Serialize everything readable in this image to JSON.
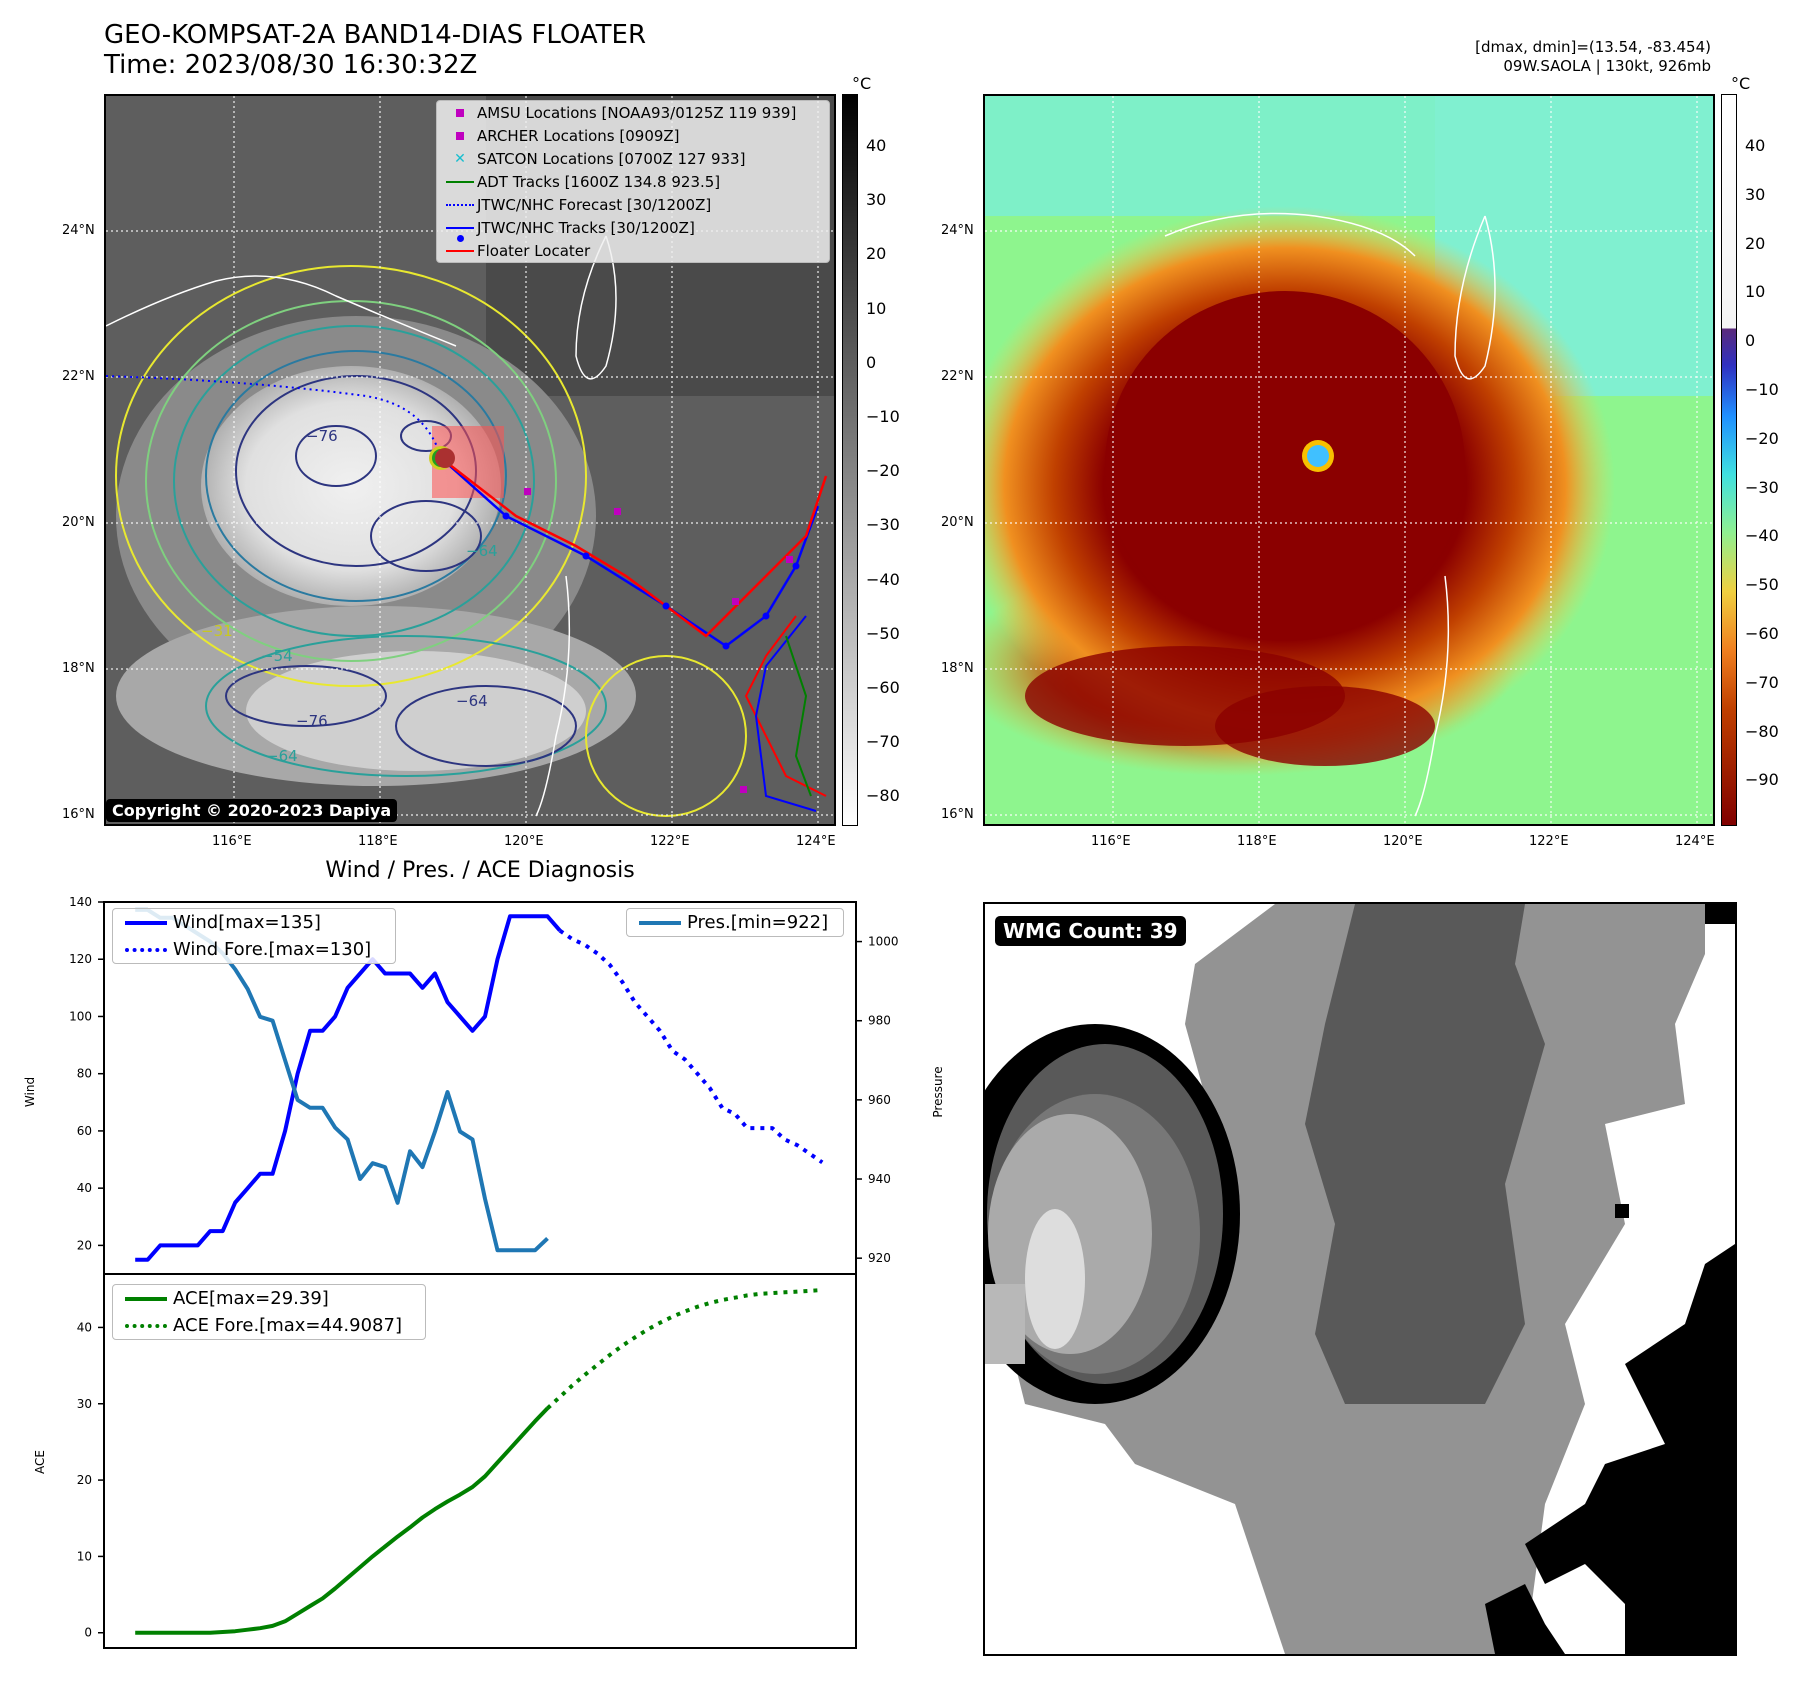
{
  "header": {
    "title_line1": "GEO-KOMPSAT-2A BAND14-DIAS FLOATER",
    "title_line2": "Time: 2023/08/30 16:30:32Z",
    "right_line1": "[dmax, dmin]=(13.54, -83.454)",
    "right_line2": "09W.SAOLA | 130kt, 926mb"
  },
  "map_axes": {
    "lat_ticks": [
      "24°N",
      "22°N",
      "20°N",
      "18°N",
      "16°N"
    ],
    "lon_ticks": [
      "116°E",
      "118°E",
      "120°E",
      "122°E",
      "124°E"
    ]
  },
  "left_map": {
    "colorbar_unit": "°C",
    "colorbar_ticks": [
      "40",
      "30",
      "20",
      "10",
      "0",
      "−10",
      "−20",
      "−30",
      "−40",
      "−50",
      "−60",
      "−70",
      "−80"
    ],
    "copyright": "Copyright © 2020-2023 Dapiya",
    "contour_labels": [
      "−76",
      "−64",
      "−54",
      "−31",
      "−76",
      "−64",
      "−64"
    ],
    "legend": [
      {
        "label": "AMSU Locations [NOAA93/0125Z 119 939]",
        "symbol": "square",
        "color": "#bf00bf"
      },
      {
        "label": "ARCHER Locations [0909Z]",
        "symbol": "square",
        "color": "#bf00bf"
      },
      {
        "label": "SATCON Locations [0700Z 127 933]",
        "symbol": "x",
        "color": "#17becf"
      },
      {
        "label": "ADT Tracks [1600Z 134.8 923.5]",
        "symbol": "line",
        "color": "#008000"
      },
      {
        "label": "JTWC/NHC Forecast [30/1200Z]",
        "symbol": "dotted",
        "color": "#0000ff"
      },
      {
        "label": "JTWC/NHC Tracks [30/1200Z]",
        "symbol": "line-dot",
        "color": "#0000ff"
      },
      {
        "label": "Floater Locater",
        "symbol": "line",
        "color": "#ff0000"
      }
    ]
  },
  "right_map": {
    "colorbar_unit": "°C",
    "colorbar_ticks": [
      "40",
      "30",
      "20",
      "10",
      "0",
      "−10",
      "−20",
      "−30",
      "−40",
      "−50",
      "−60",
      "−70",
      "−80",
      "−90"
    ]
  },
  "diagnosis": {
    "title": "Wind / Pres. / ACE Diagnosis",
    "wind_ylabel": "Wind",
    "pressure_ylabel": "Pressure",
    "ace_ylabel": "ACE",
    "legend_wind": "Wind[max=135]",
    "legend_wind_fore": "Wind Fore.[max=130]",
    "legend_pres": "Pres.[min=922]",
    "legend_ace": "ACE[max=29.39]",
    "legend_ace_fore": "ACE Fore.[max=44.9087]"
  },
  "wmg": {
    "label": "WMG Count: 39"
  },
  "chart_data": [
    {
      "type": "line",
      "title": "Wind / Pres. / ACE Diagnosis",
      "ylabel": "Wind",
      "ylim": [
        10,
        140
      ],
      "yticks": [
        20,
        40,
        60,
        80,
        100,
        120,
        140
      ],
      "x": [
        0,
        1,
        2,
        3,
        4,
        5,
        6,
        7,
        8,
        9,
        10,
        11,
        12,
        13,
        14,
        15,
        16,
        17,
        18,
        19,
        20,
        21,
        22,
        23,
        24,
        25,
        26,
        27,
        28,
        29,
        30,
        31,
        32,
        33,
        34,
        35,
        36,
        37,
        38,
        39,
        40,
        41,
        42,
        43,
        44,
        45,
        46,
        47,
        48,
        49,
        50,
        51,
        52,
        53,
        54,
        55
      ],
      "xlim": [
        -2.5,
        57.7
      ],
      "series": [
        {
          "name": "Wind[max=135]",
          "color": "#0000ff",
          "style": "solid",
          "values": [
            15,
            15,
            20,
            20,
            20,
            20,
            25,
            25,
            35,
            40,
            45,
            45,
            60,
            80,
            95,
            95,
            100,
            110,
            115,
            120,
            115,
            115,
            115,
            110,
            115,
            105,
            100,
            95,
            100,
            120,
            135,
            135,
            135,
            135,
            130,
            null,
            null,
            null,
            null,
            null,
            null,
            null,
            null,
            null,
            null,
            null,
            null,
            null,
            null,
            null,
            null,
            null,
            null,
            null,
            null,
            null
          ]
        },
        {
          "name": "Wind Fore.[max=130]",
          "color": "#0000ff",
          "style": "dotted",
          "values": [
            null,
            null,
            null,
            null,
            null,
            null,
            null,
            null,
            null,
            null,
            null,
            null,
            null,
            null,
            null,
            null,
            null,
            null,
            null,
            null,
            null,
            null,
            null,
            null,
            null,
            null,
            null,
            null,
            null,
            null,
            null,
            null,
            null,
            null,
            130,
            127,
            125,
            122,
            118,
            112,
            105,
            100,
            95,
            88,
            85,
            80,
            75,
            68,
            66,
            61,
            61,
            61,
            57,
            55,
            52,
            49
          ]
        }
      ]
    },
    {
      "type": "line",
      "ylabel": "Pressure",
      "ylim": [
        916,
        1010
      ],
      "yticks": [
        920,
        940,
        960,
        980,
        1000
      ],
      "series": [
        {
          "name": "Pres.[min=922]",
          "color": "#1f77b4",
          "style": "solid",
          "x": [
            0,
            1,
            2,
            3,
            4,
            5,
            6,
            7,
            8,
            9,
            10,
            11,
            12,
            13,
            14,
            15,
            16,
            17,
            18,
            19,
            20,
            21,
            22,
            23,
            24,
            25,
            26,
            27,
            28,
            29,
            30,
            31,
            32,
            33,
            34
          ],
          "values": [
            1008,
            1008,
            1006,
            1006,
            1004,
            1002,
            1000,
            997,
            993,
            988,
            981,
            980,
            970,
            960,
            958,
            958,
            953,
            950,
            940,
            944,
            943,
            934,
            947,
            943,
            952,
            962,
            952,
            950,
            935,
            922,
            922,
            922,
            922,
            925,
            null
          ]
        }
      ]
    },
    {
      "type": "line",
      "ylabel": "ACE",
      "ylim": [
        -2,
        47
      ],
      "yticks": [
        0,
        10,
        20,
        30,
        40
      ],
      "x": [
        0,
        1,
        2,
        3,
        4,
        5,
        6,
        7,
        8,
        9,
        10,
        11,
        12,
        13,
        14,
        15,
        16,
        17,
        18,
        19,
        20,
        21,
        22,
        23,
        24,
        25,
        26,
        27,
        28,
        29,
        30,
        31,
        32,
        33,
        34,
        35,
        36,
        37,
        38,
        39,
        40,
        41,
        42,
        43,
        44,
        45,
        46,
        47,
        48,
        49,
        50,
        51,
        52,
        53,
        54,
        55
      ],
      "series": [
        {
          "name": "ACE[max=29.39]",
          "color": "#008000",
          "style": "solid",
          "values": [
            0,
            0,
            0,
            0,
            0,
            0,
            0,
            0.1,
            0.2,
            0.4,
            0.6,
            0.9,
            1.5,
            2.5,
            3.5,
            4.5,
            5.8,
            7.2,
            8.6,
            10,
            11.3,
            12.6,
            13.8,
            15.1,
            16.2,
            17.2,
            18.1,
            19.1,
            20.5,
            22.3,
            24.1,
            25.9,
            27.7,
            29.4,
            null,
            null,
            null,
            null,
            null,
            null,
            null,
            null,
            null,
            null,
            null,
            null,
            null,
            null,
            null,
            null,
            null,
            null,
            null,
            null,
            null,
            null
          ]
        },
        {
          "name": "ACE Fore.[max=44.9087]",
          "color": "#008000",
          "style": "dotted",
          "values": [
            null,
            null,
            null,
            null,
            null,
            null,
            null,
            null,
            null,
            null,
            null,
            null,
            null,
            null,
            null,
            null,
            null,
            null,
            null,
            null,
            null,
            null,
            null,
            null,
            null,
            null,
            null,
            null,
            null,
            null,
            null,
            null,
            null,
            29.4,
            30.9,
            32.4,
            33.8,
            35.1,
            36.4,
            37.6,
            38.7,
            39.7,
            40.6,
            41.4,
            42.1,
            42.7,
            43.2,
            43.6,
            43.9,
            44.2,
            44.4,
            44.5,
            44.6,
            44.7,
            44.8,
            44.9
          ]
        }
      ]
    }
  ]
}
